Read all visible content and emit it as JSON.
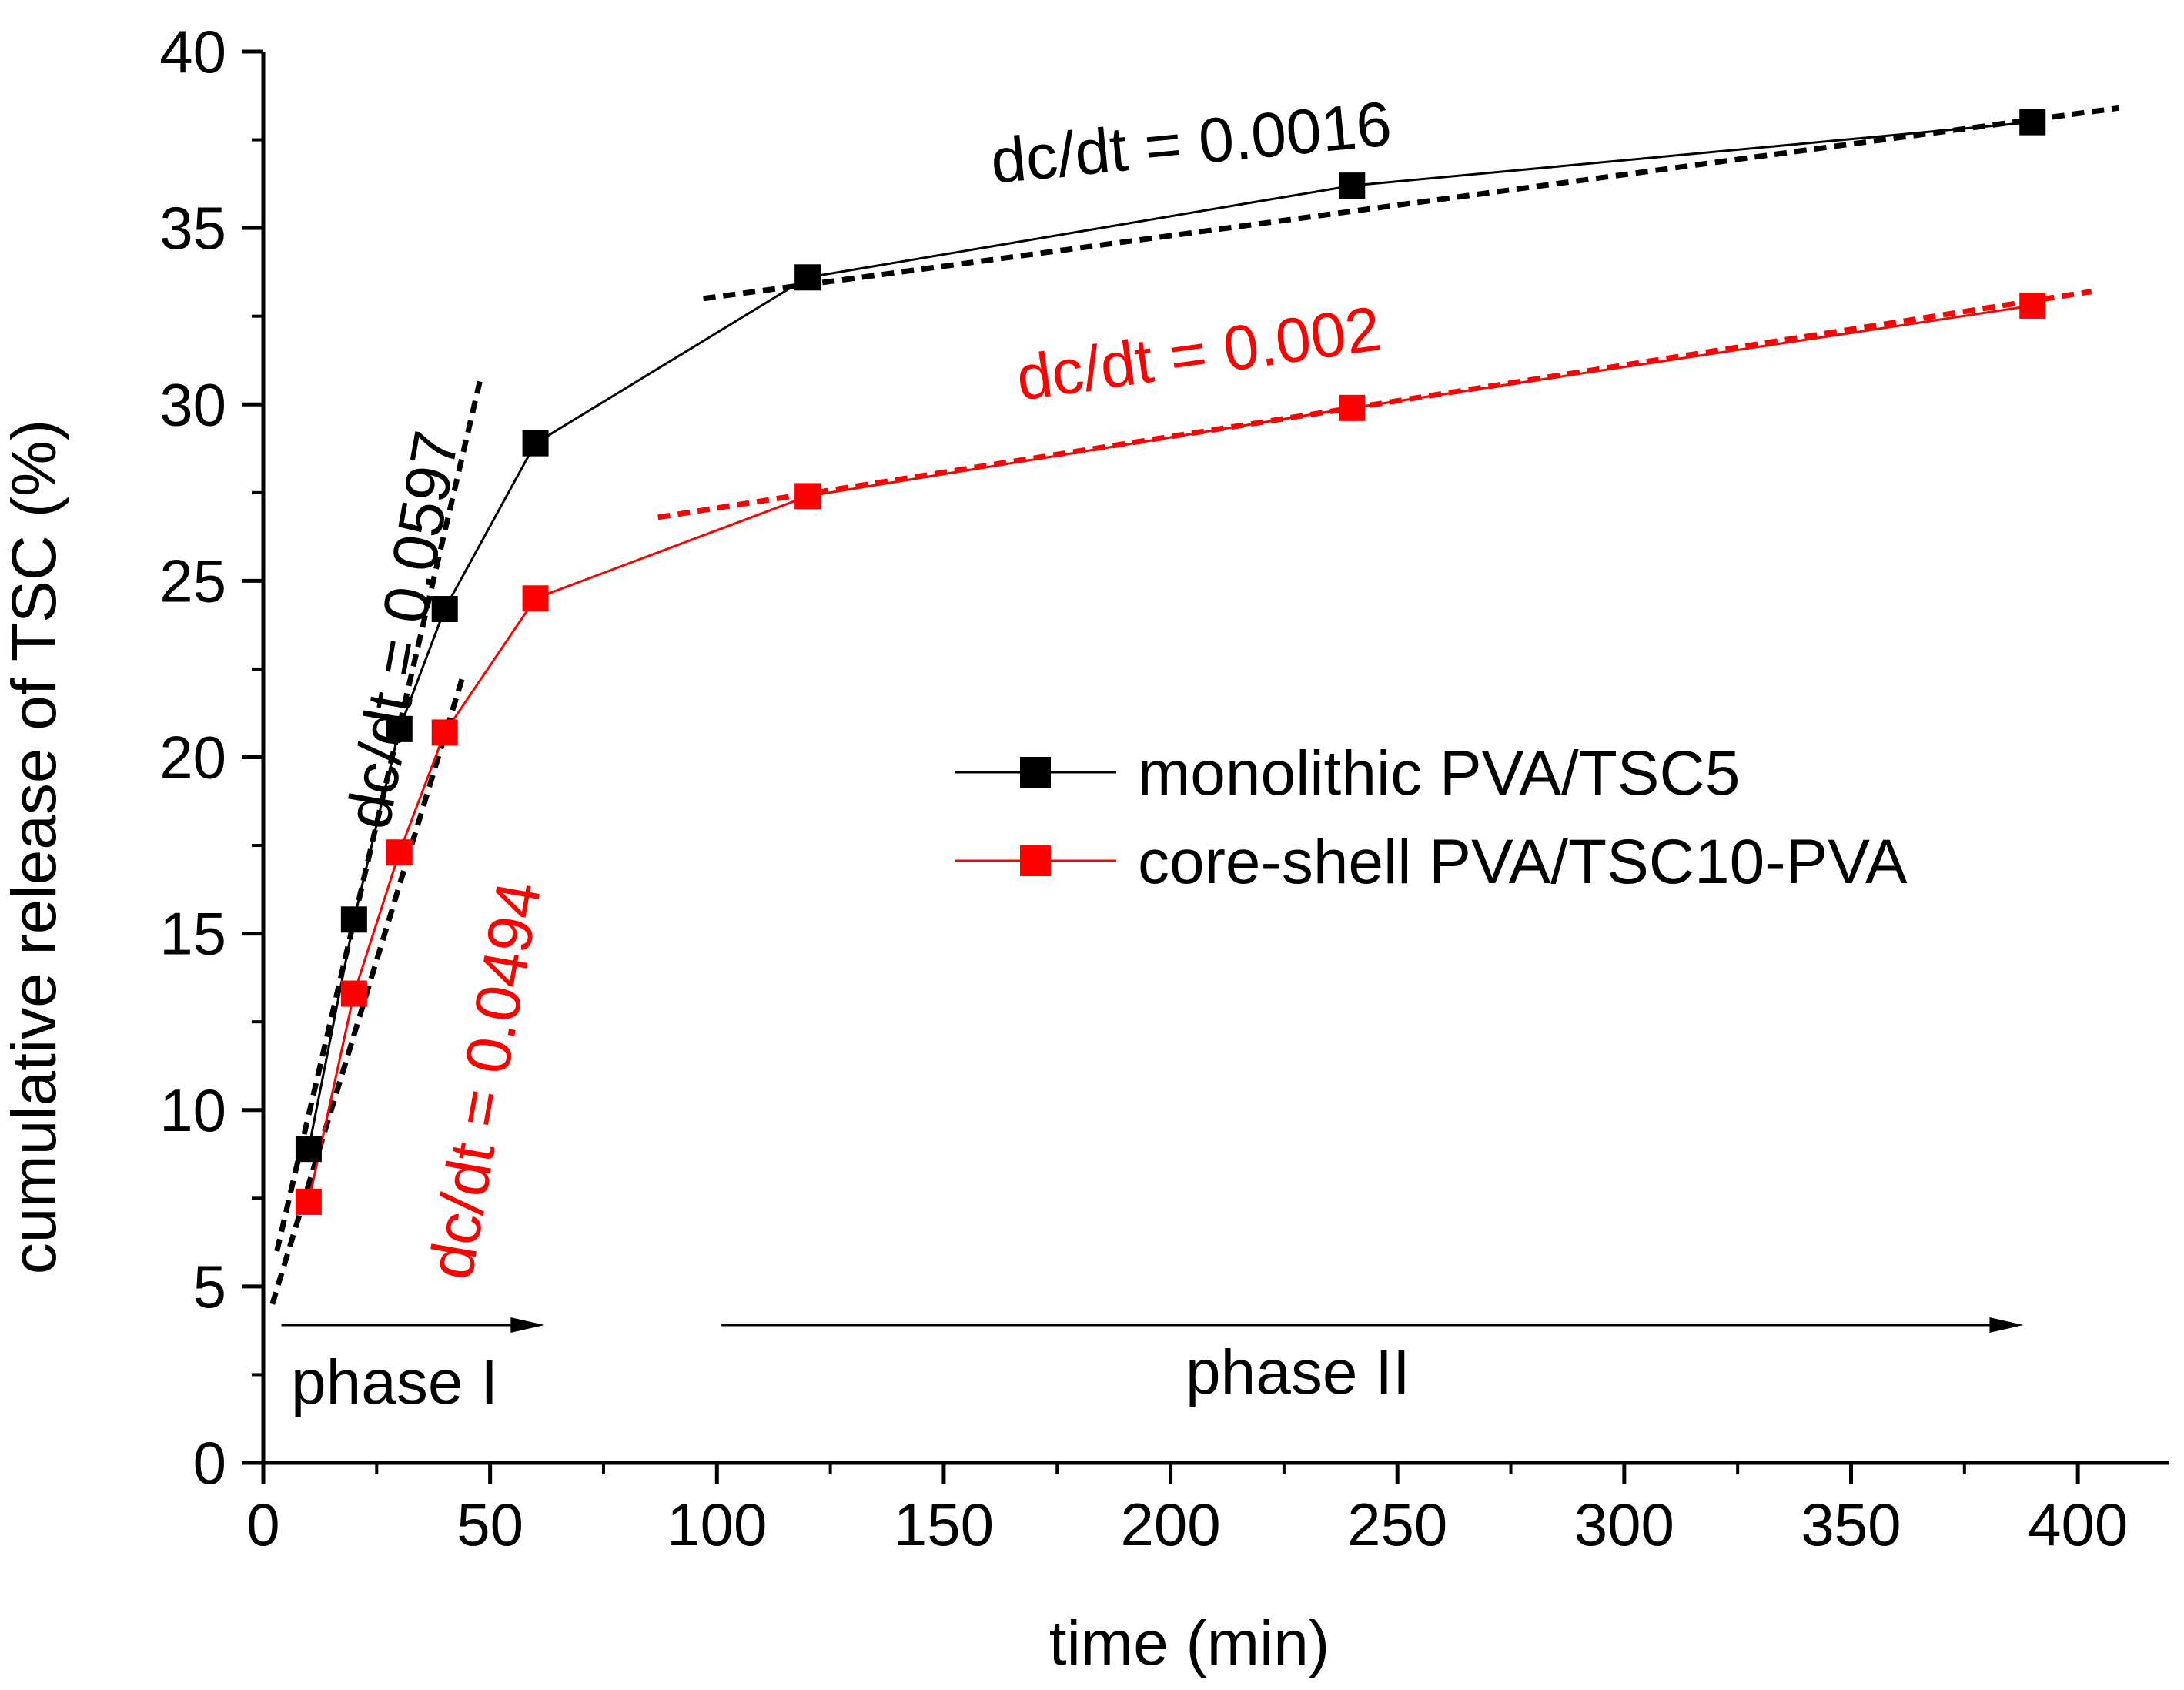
{
  "chart_data": {
    "type": "line",
    "title": "",
    "xlabel": "time (min)",
    "ylabel": "cumulative release of TSC (%)",
    "xlim": [
      0,
      420
    ],
    "ylim": [
      0,
      40
    ],
    "xticks": [
      0,
      50,
      100,
      150,
      200,
      250,
      300,
      350,
      400
    ],
    "yticks": [
      0,
      5,
      10,
      15,
      20,
      25,
      30,
      35,
      40
    ],
    "grid": false,
    "legend_position": "center-right",
    "series": [
      {
        "name": "monolithic PVA/TSC5",
        "color": "#000000",
        "marker": "square",
        "x": [
          10,
          20,
          30,
          40,
          60,
          120,
          240,
          390
        ],
        "y": [
          8.9,
          15.4,
          20.8,
          24.2,
          28.9,
          33.6,
          36.2,
          38.0
        ]
      },
      {
        "name": "core-shell PVA/TSC10-PVA",
        "color": "#ff0000",
        "marker": "square",
        "x": [
          10,
          20,
          30,
          40,
          60,
          120,
          240,
          390
        ],
        "y": [
          7.4,
          13.3,
          17.3,
          20.7,
          24.5,
          27.4,
          29.9,
          32.8
        ]
      }
    ],
    "fits": [
      {
        "name": "fit-phase1-monolithic",
        "color": "#000000",
        "x": [
          3,
          48
        ],
        "y": [
          6.0,
          30.8
        ]
      },
      {
        "name": "fit-phase1-coreshell",
        "color": "#000000",
        "x": [
          2,
          44
        ],
        "y": [
          4.5,
          22.3
        ]
      },
      {
        "name": "fit-phase2-monolithic",
        "color": "#000000",
        "x": [
          97,
          409
        ],
        "y": [
          33.0,
          38.4
        ]
      },
      {
        "name": "fit-phase2-coreshell",
        "color": "#ff0000",
        "x": [
          87,
          403
        ],
        "y": [
          26.8,
          33.2
        ]
      }
    ],
    "annotations": [
      {
        "text": "dc/dt = 0.0016",
        "color": "#000000"
      },
      {
        "text": "dc/dt = 0.002",
        "color": "#ff0000"
      },
      {
        "text": "dc/dt = 0.0597",
        "color": "#000000"
      },
      {
        "text": "dc/dt = 0.0494",
        "color": "#ff0000"
      }
    ],
    "phases": [
      {
        "label": "phase I",
        "x_start": 4,
        "x_end": 62
      },
      {
        "label": "phase II",
        "x_start": 101,
        "x_end": 388
      }
    ]
  }
}
